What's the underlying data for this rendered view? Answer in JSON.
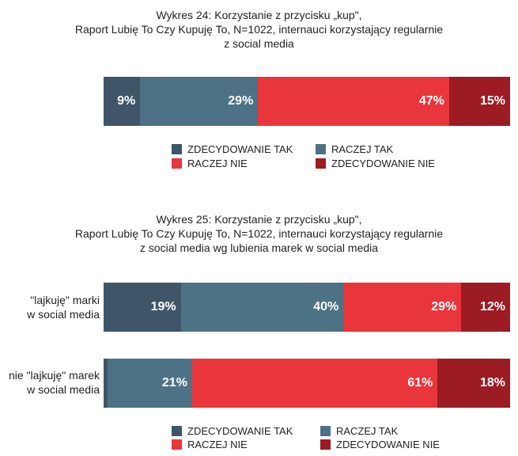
{
  "colors": {
    "zdecydowanie_tak": "#3e5668",
    "raczej_tak": "#4e7285",
    "raczej_nie": "#e8363c",
    "zdecydowanie_nie": "#9d1b22"
  },
  "chart_data": [
    {
      "type": "bar",
      "orientation": "horizontal-stacked-100",
      "title": {
        "line1": "Wykres 24: Korzystanie z przycisku „kup\",",
        "line2": "Raport Lubię To Czy Kupuję To, N=1022, internauci korzystający regularnie",
        "line3": "z social media"
      },
      "categories": [
        ""
      ],
      "series": [
        {
          "name": "ZDECYDOWANIE TAK",
          "values": [
            9
          ]
        },
        {
          "name": "RACZEJ TAK",
          "values": [
            29
          ]
        },
        {
          "name": "RACZEJ NIE",
          "values": [
            47
          ]
        },
        {
          "name": "ZDECYDOWANIE NIE",
          "values": [
            15
          ]
        }
      ],
      "legend": [
        "ZDECYDOWANIE TAK",
        "RACZEJ TAK",
        "RACZEJ NIE",
        "ZDECYDOWANIE NIE"
      ]
    },
    {
      "type": "bar",
      "orientation": "horizontal-stacked-100",
      "title": {
        "line1": "Wykres 25: Korzystanie z przycisku „kup\",",
        "line2": "Raport Lubię To Czy Kupuję To, N=1022, internauci korzystający regularnie",
        "line3": "z social media wg lubienia marek w social media"
      },
      "categories": [
        {
          "line1": "\"lajkuję\" marki",
          "line2": "w social media"
        },
        {
          "line1": "nie \"lajkuję\" marek",
          "line2": "w social media"
        }
      ],
      "series": [
        {
          "name": "ZDECYDOWANIE TAK",
          "values": [
            19,
            1
          ]
        },
        {
          "name": "RACZEJ TAK",
          "values": [
            40,
            21
          ]
        },
        {
          "name": "RACZEJ NIE",
          "values": [
            29,
            61
          ]
        },
        {
          "name": "ZDECYDOWANIE NIE",
          "values": [
            12,
            18
          ]
        }
      ],
      "legend": [
        "ZDECYDOWANIE TAK",
        "RACZEJ TAK",
        "RACZEJ NIE",
        "ZDECYDOWANIE NIE"
      ]
    }
  ]
}
